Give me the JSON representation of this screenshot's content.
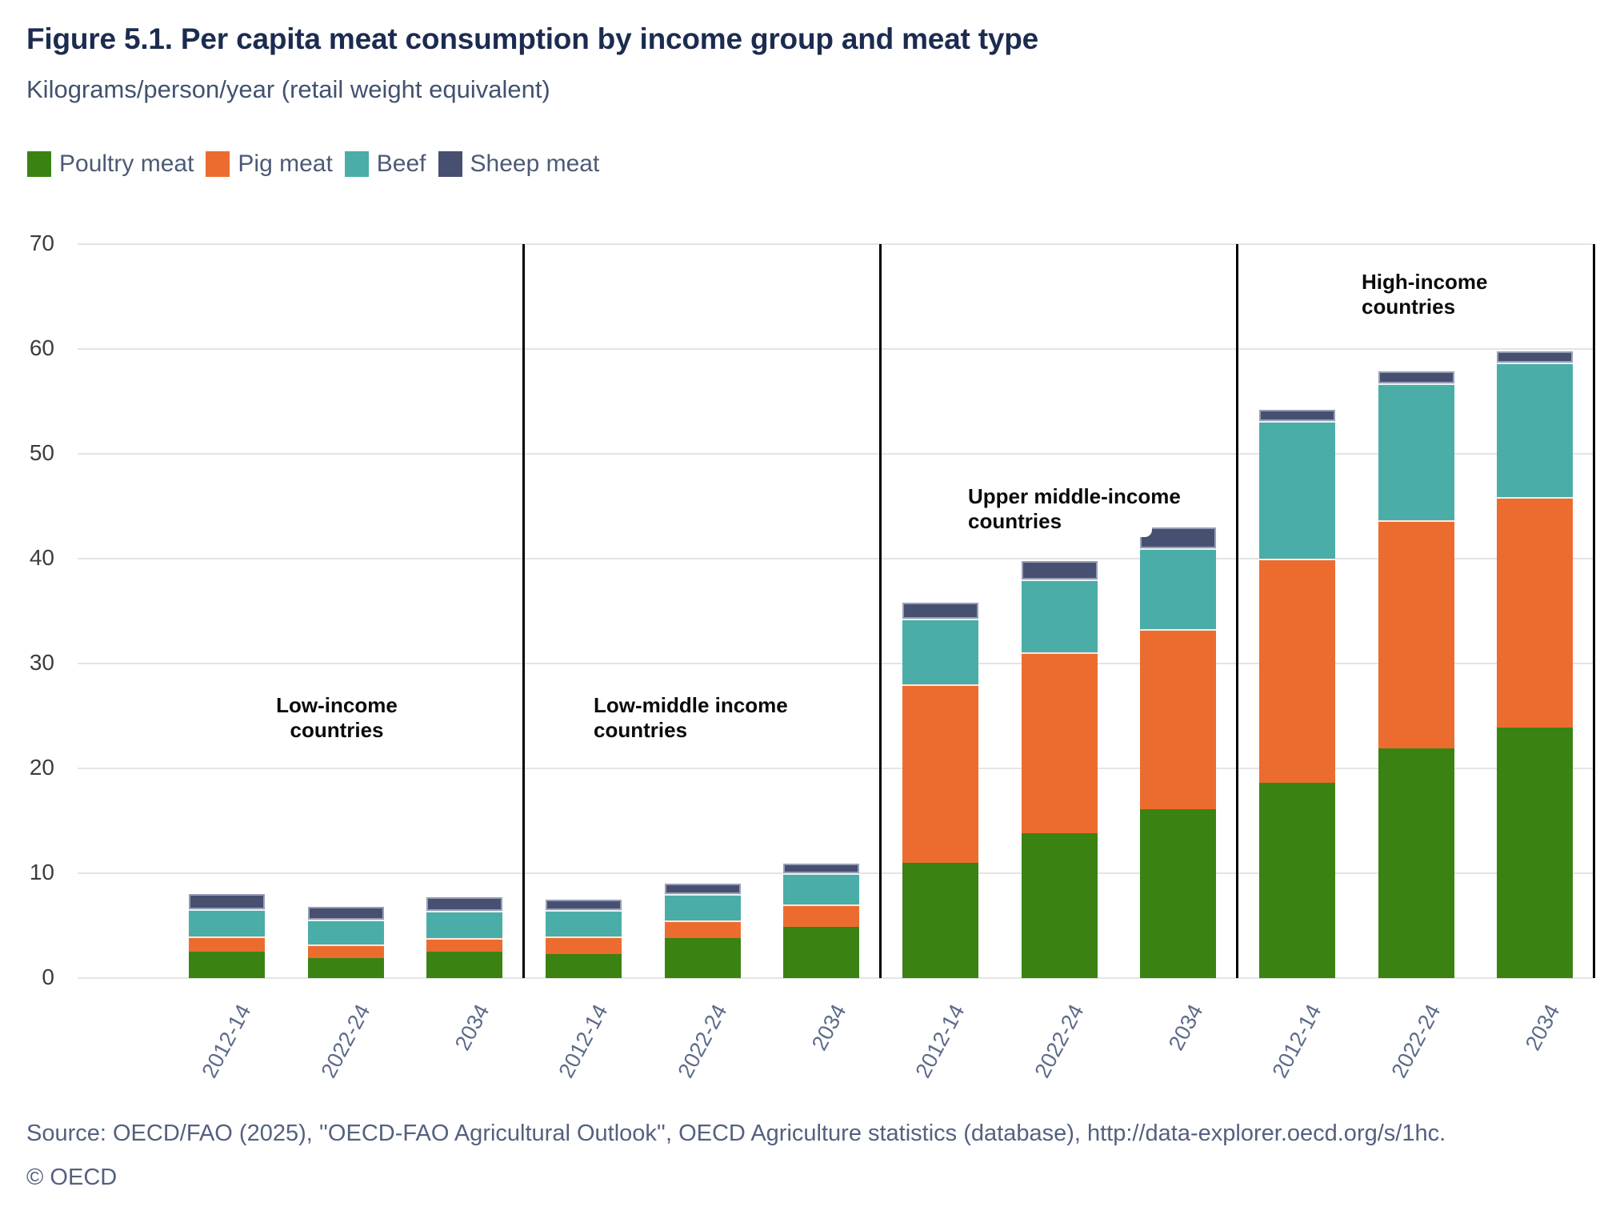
{
  "header": {
    "title": "Figure 5.1. Per capita meat consumption by income group and meat type",
    "subtitle": "Kilograms/person/year (retail weight equivalent)"
  },
  "chart_data": {
    "type": "bar",
    "stacked": true,
    "title": "Per capita meat consumption by income group and meat type",
    "ylabel": "Kilograms/person/year (retail weight equivalent)",
    "ylim": [
      0,
      70
    ],
    "yticks": [
      0,
      10,
      20,
      30,
      40,
      50,
      60,
      70
    ],
    "grid": true,
    "legend_position": "top-left",
    "series": [
      {
        "name": "Poultry meat",
        "color": "#3a8313"
      },
      {
        "name": "Pig meat",
        "color": "#ec6c30"
      },
      {
        "name": "Beef",
        "color": "#4bada7"
      },
      {
        "name": "Sheep meat",
        "color": "#475070"
      }
    ],
    "categories": [
      "2012-14",
      "2022-24",
      "2034"
    ],
    "groups": [
      {
        "label": "Low-income countries",
        "label_lines": [
          "Low-income",
          "countries"
        ],
        "bars": [
          {
            "period": "2012-14",
            "values": [
              2.5,
              1.5,
              2.6,
              1.4
            ],
            "total": 8.0
          },
          {
            "period": "2022-24",
            "values": [
              1.9,
              1.3,
              2.4,
              1.2
            ],
            "total": 6.8
          },
          {
            "period": "2034",
            "values": [
              2.5,
              1.3,
              2.6,
              1.3
            ],
            "total": 7.7
          }
        ]
      },
      {
        "label": "Low-middle income countries",
        "label_lines": [
          "Low-middle income",
          "countries"
        ],
        "bars": [
          {
            "period": "2012-14",
            "values": [
              2.3,
              1.7,
              2.5,
              1.0
            ],
            "total": 7.5
          },
          {
            "period": "2022-24",
            "values": [
              3.8,
              1.7,
              2.5,
              1.0
            ],
            "total": 9.0
          },
          {
            "period": "2034",
            "values": [
              4.9,
              2.1,
              3.0,
              0.9
            ],
            "total": 10.9
          }
        ]
      },
      {
        "label": "Upper middle-income countries",
        "label_lines": [
          "Upper middle-income",
          "countries"
        ],
        "bars": [
          {
            "period": "2012-14",
            "values": [
              11.0,
              17.0,
              6.3,
              1.5
            ],
            "total": 35.8
          },
          {
            "period": "2022-24",
            "values": [
              13.8,
              17.3,
              6.9,
              1.8
            ],
            "total": 39.8
          },
          {
            "period": "2034",
            "values": [
              16.1,
              17.2,
              7.7,
              2.0
            ],
            "total": 43.0,
            "top_notch": true
          }
        ]
      },
      {
        "label": "High-income countries",
        "label_lines": [
          "High-income",
          "countries"
        ],
        "bars": [
          {
            "period": "2012-14",
            "values": [
              18.6,
              21.4,
              13.1,
              1.1
            ],
            "total": 54.2
          },
          {
            "period": "2022-24",
            "values": [
              21.9,
              21.8,
              13.0,
              1.2
            ],
            "total": 57.9
          },
          {
            "period": "2034",
            "values": [
              23.9,
              22.0,
              12.8,
              1.1
            ],
            "total": 59.8
          }
        ]
      }
    ]
  },
  "footer": {
    "source": "Source: OECD/FAO (2025), ''OECD-FAO Agricultural Outlook'', OECD Agriculture statistics (database), http://data-explorer.oecd.org/s/1hc.",
    "copyright": "© OECD"
  }
}
